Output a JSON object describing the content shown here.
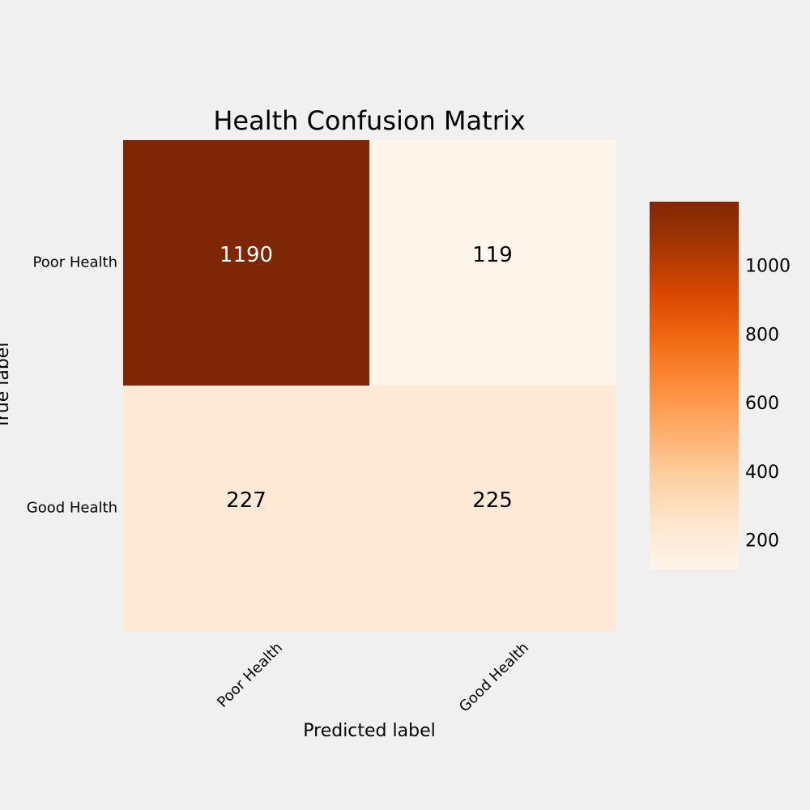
{
  "chart_data": {
    "type": "heatmap",
    "title": "Health Confusion Matrix",
    "x_label": "Predicted label",
    "y_label": "True label",
    "x_categories": [
      "Poor Health",
      "Good Health"
    ],
    "y_categories": [
      "Poor Health",
      "Good Health"
    ],
    "values": [
      [
        1190,
        119
      ],
      [
        227,
        225
      ]
    ],
    "colormap": "Oranges",
    "clim": [
      119,
      1190
    ],
    "cticks": [
      200,
      400,
      600,
      800,
      1000
    ]
  }
}
